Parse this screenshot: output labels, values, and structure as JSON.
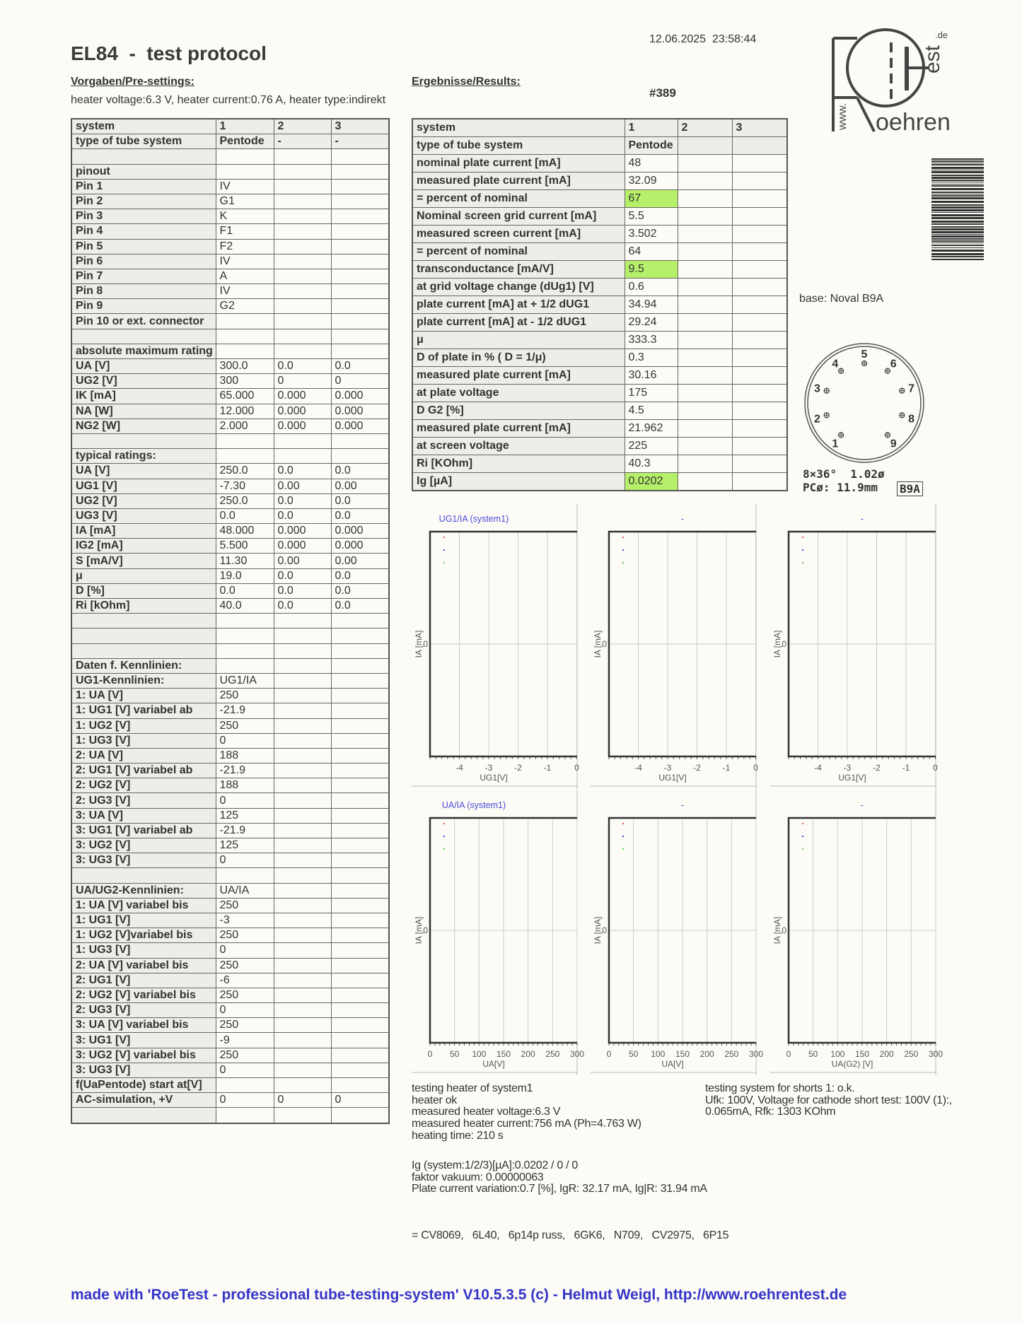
{
  "header": {
    "title": "EL84  -  test protocol",
    "datetime": "12.06.2025  23:58:44",
    "test_number": "#389",
    "presettings_heading": "Vorgaben/Pre-settings:",
    "results_heading": "Ergebnisse/Results:",
    "heater_line": "heater voltage:6.3 V, heater current:0.76 A, heater type:indirekt"
  },
  "logo": {
    "www": "www.",
    "roehren": "oehren",
    "est": "est",
    "de": ".de"
  },
  "left_table": {
    "rows": [
      [
        "system",
        "1",
        "2",
        "3"
      ],
      [
        "type of tube system",
        "Pentode",
        "-",
        "-"
      ],
      [
        "",
        "",
        "",
        ""
      ],
      [
        "pinout",
        "",
        "",
        ""
      ],
      [
        "Pin 1",
        "IV",
        "",
        ""
      ],
      [
        "Pin 2",
        "G1",
        "",
        ""
      ],
      [
        "Pin 3",
        "K",
        "",
        ""
      ],
      [
        "Pin 4",
        "F1",
        "",
        ""
      ],
      [
        "Pin 5",
        "F2",
        "",
        ""
      ],
      [
        "Pin 6",
        "IV",
        "",
        ""
      ],
      [
        "Pin 7",
        "A",
        "",
        ""
      ],
      [
        "Pin 8",
        "IV",
        "",
        ""
      ],
      [
        "Pin 9",
        "G2",
        "",
        ""
      ],
      [
        "Pin 10 or ext. connector",
        "",
        "",
        ""
      ],
      [
        "",
        "",
        "",
        ""
      ],
      [
        "absolute maximum rating",
        "",
        "",
        ""
      ],
      [
        "UA [V]",
        "300.0",
        "0.0",
        "0.0"
      ],
      [
        "UG2 [V]",
        "300",
        "0",
        "0"
      ],
      [
        "IK [mA]",
        "65.000",
        "0.000",
        "0.000"
      ],
      [
        "NA [W]",
        "12.000",
        "0.000",
        "0.000"
      ],
      [
        "NG2 [W]",
        "2.000",
        "0.000",
        "0.000"
      ],
      [
        "",
        "",
        "",
        ""
      ],
      [
        "typical ratings:",
        "",
        "",
        ""
      ],
      [
        "UA [V]",
        "250.0",
        "0.0",
        "0.0"
      ],
      [
        "UG1 [V]",
        "-7.30",
        "0.00",
        "0.00"
      ],
      [
        "UG2 [V]",
        "250.0",
        "0.0",
        "0.0"
      ],
      [
        "UG3 [V]",
        "0.0",
        "0.0",
        "0.0"
      ],
      [
        "IA [mA]",
        "48.000",
        "0.000",
        "0.000"
      ],
      [
        "IG2 [mA]",
        "5.500",
        "0.000",
        "0.000"
      ],
      [
        "S [mA/V]",
        "11.30",
        "0.00",
        "0.00"
      ],
      [
        "μ",
        "19.0",
        "0.0",
        "0.0"
      ],
      [
        "D [%]",
        "0.0",
        "0.0",
        "0.0"
      ],
      [
        "Ri [kOhm]",
        "40.0",
        "0.0",
        "0.0"
      ],
      [
        "",
        "",
        "",
        ""
      ],
      [
        "",
        "",
        "",
        ""
      ],
      [
        "",
        "",
        "",
        ""
      ],
      [
        "Daten f. Kennlinien:",
        "",
        "",
        ""
      ],
      [
        "UG1-Kennlinien:",
        "UG1/IA",
        "",
        ""
      ],
      [
        "1: UA [V]",
        "250",
        "",
        ""
      ],
      [
        "1: UG1 [V] variabel ab",
        "-21.9",
        "",
        ""
      ],
      [
        "1: UG2 [V]",
        "250",
        "",
        ""
      ],
      [
        "1: UG3 [V]",
        "0",
        "",
        ""
      ],
      [
        "2: UA [V]",
        "188",
        "",
        ""
      ],
      [
        "2: UG1 [V] variabel ab",
        "-21.9",
        "",
        ""
      ],
      [
        "2: UG2 [V]",
        "188",
        "",
        ""
      ],
      [
        "2: UG3 [V]",
        "0",
        "",
        ""
      ],
      [
        "3: UA [V]",
        "125",
        "",
        ""
      ],
      [
        "3: UG1 [V] variabel ab",
        "-21.9",
        "",
        ""
      ],
      [
        "3: UG2 [V]",
        "125",
        "",
        ""
      ],
      [
        "3: UG3 [V]",
        "0",
        "",
        ""
      ],
      [
        "",
        "",
        "",
        ""
      ],
      [
        "UA/UG2-Kennlinien:",
        "UA/IA",
        "",
        ""
      ],
      [
        "1: UA [V] variabel bis",
        "250",
        "",
        ""
      ],
      [
        "1: UG1 [V]",
        "-3",
        "",
        ""
      ],
      [
        "1: UG2 [V]variabel bis",
        "250",
        "",
        ""
      ],
      [
        "1: UG3 [V]",
        "0",
        "",
        ""
      ],
      [
        "2: UA [V] variabel bis",
        "250",
        "",
        ""
      ],
      [
        "2: UG1 [V]",
        "-6",
        "",
        ""
      ],
      [
        "2: UG2 [V] variabel bis",
        "250",
        "",
        ""
      ],
      [
        "2: UG3 [V]",
        "0",
        "",
        ""
      ],
      [
        "3: UA [V] variabel bis",
        "250",
        "",
        ""
      ],
      [
        "3: UG1 [V]",
        "-9",
        "",
        ""
      ],
      [
        "3: UG2 [V] variabel bis",
        "250",
        "",
        ""
      ],
      [
        "3: UG3 [V]",
        "0",
        "",
        ""
      ],
      [
        "f(UaPentode) start at[V]",
        "",
        "",
        ""
      ],
      [
        "AC-simulation, +V",
        "0",
        "0",
        "0"
      ],
      [
        "",
        "",
        "",
        ""
      ]
    ]
  },
  "right_table": {
    "highlight_color": "#b6f06a",
    "rows": [
      {
        "cells": [
          "system",
          "1",
          "2",
          "3"
        ]
      },
      {
        "cells": [
          "type of tube system",
          "Pentode",
          "",
          ""
        ]
      },
      {
        "cells": [
          "nominal plate current [mA]",
          "48",
          "",
          ""
        ]
      },
      {
        "cells": [
          "measured plate current [mA]",
          "32.09",
          "",
          ""
        ]
      },
      {
        "cells": [
          "= percent of nominal",
          "67",
          "",
          ""
        ],
        "highlight": true
      },
      {
        "cells": [
          "Nominal screen grid current [mA]",
          "5.5",
          "",
          ""
        ]
      },
      {
        "cells": [
          "measured screen current [mA]",
          "3.502",
          "",
          ""
        ]
      },
      {
        "cells": [
          "= percent of nominal",
          "64",
          "",
          ""
        ]
      },
      {
        "cells": [
          "transconductance [mA/V]",
          "9.5",
          "",
          ""
        ],
        "highlight": true
      },
      {
        "cells": [
          "at grid voltage change (dUg1) [V]",
          "0.6",
          "",
          ""
        ]
      },
      {
        "cells": [
          "plate current [mA] at + 1/2 dUG1",
          "34.94",
          "",
          ""
        ]
      },
      {
        "cells": [
          "plate current [mA] at - 1/2 dUG1",
          "29.24",
          "",
          ""
        ]
      },
      {
        "cells": [
          "μ",
          "333.3",
          "",
          ""
        ]
      },
      {
        "cells": [
          "D of plate in % ( D = 1/μ)",
          "0.3",
          "",
          ""
        ]
      },
      {
        "cells": [
          "measured plate current [mA]",
          "30.16",
          "",
          ""
        ]
      },
      {
        "cells": [
          "at plate voltage",
          "175",
          "",
          ""
        ]
      },
      {
        "cells": [
          "D G2 [%]",
          "4.5",
          "",
          ""
        ]
      },
      {
        "cells": [
          "measured plate current [mA]",
          "21.962",
          "",
          ""
        ]
      },
      {
        "cells": [
          "at screen voltage",
          "225",
          "",
          ""
        ]
      },
      {
        "cells": [
          "Ri [KOhm]",
          "40.3",
          "",
          ""
        ]
      },
      {
        "cells": [
          "Ig [µA]",
          "0.0202",
          "",
          ""
        ],
        "highlight": true
      }
    ]
  },
  "socket": {
    "base_label": "base: Noval B9A",
    "pins": [
      "1",
      "2",
      "3",
      "4",
      "5",
      "6",
      "7",
      "8",
      "9"
    ],
    "spec_line1": "8×36°  1.02ø",
    "spec_line2": "PCø: 11.9mm",
    "code": "B9A"
  },
  "chart_data": [
    {
      "type": "line",
      "title": "UG1/IA (system1)",
      "xlabel": "UG1[V]",
      "ylabel": "IA [mA]",
      "xlim": [
        -5,
        0
      ],
      "xticks": [
        "-4",
        "-3",
        "-2",
        "-1",
        "0"
      ],
      "xtick_values": [
        -4,
        -3,
        -2,
        -1,
        0
      ],
      "yticks": [
        "0"
      ],
      "grid": true,
      "series": [],
      "legend_colors": [
        "#e05050",
        "#4040e0",
        "#50d050"
      ]
    },
    {
      "type": "line",
      "title": "-",
      "xlabel": "UG1[V]",
      "ylabel": "IA [mA]",
      "xlim": [
        -5,
        0
      ],
      "xticks": [
        "-4",
        "-3",
        "-2",
        "-1",
        "0"
      ],
      "xtick_values": [
        -4,
        -3,
        -2,
        -1,
        0
      ],
      "yticks": [
        "0"
      ],
      "grid": true,
      "series": [],
      "legend_colors": [
        "#e05050",
        "#4040e0",
        "#50d050"
      ]
    },
    {
      "type": "line",
      "title": "-",
      "xlabel": "UG1[V]",
      "ylabel": "IA [mA]",
      "xlim": [
        -5,
        0
      ],
      "xticks": [
        "-4",
        "-3",
        "-2",
        "-1",
        "0"
      ],
      "xtick_values": [
        -4,
        -3,
        -2,
        -1,
        0
      ],
      "yticks": [
        "0"
      ],
      "grid": true,
      "series": [],
      "legend_colors": [
        "#e05050",
        "#4040e0",
        "#50d050"
      ]
    },
    {
      "type": "line",
      "title": "UA/IA (system1)",
      "xlabel": "UA[V]",
      "ylabel": "IA [mA]",
      "xlim": [
        0,
        300
      ],
      "xticks": [
        "0",
        "50",
        "100",
        "150",
        "200",
        "250",
        "300"
      ],
      "xtick_values": [
        0,
        50,
        100,
        150,
        200,
        250,
        300
      ],
      "yticks": [
        "0"
      ],
      "grid": true,
      "series": [],
      "legend_colors": [
        "#e05050",
        "#4040e0",
        "#50d050"
      ]
    },
    {
      "type": "line",
      "title": "-",
      "xlabel": "UA[V]",
      "ylabel": "IA [mA]",
      "xlim": [
        0,
        300
      ],
      "xticks": [
        "0",
        "50",
        "100",
        "150",
        "200",
        "250",
        "300"
      ],
      "xtick_values": [
        0,
        50,
        100,
        150,
        200,
        250,
        300
      ],
      "yticks": [
        "0"
      ],
      "grid": true,
      "series": [],
      "legend_colors": [
        "#e05050",
        "#4040e0",
        "#50d050"
      ]
    },
    {
      "type": "line",
      "title": "-",
      "xlabel": "UA(G2)  [V]",
      "ylabel": "IA [mA]",
      "xlim": [
        0,
        300
      ],
      "xticks": [
        "0",
        "50",
        "100",
        "150",
        "200",
        "250",
        "300"
      ],
      "xtick_values": [
        0,
        50,
        100,
        150,
        200,
        250,
        300
      ],
      "yticks": [
        "0"
      ],
      "grid": true,
      "series": [],
      "legend_colors": [
        "#e05050",
        "#4040e0",
        "#50d050"
      ]
    }
  ],
  "heater_test": {
    "lines": [
      "testing heater of system1",
      "heater ok",
      "measured heater voltage:6.3 V",
      "measured heater current:756 mA (Ph=4.763 W)",
      "heating time: 210 s"
    ]
  },
  "short_test": {
    "lines": [
      "testing system for shorts 1: o.k.",
      "Ufk: 100V, Voltage for cathode short test: 100V (1):,",
      "0.065mA, Rfk: 1303 KOhm"
    ]
  },
  "grid_test": {
    "lines": [
      "Ig (system:1/2/3)[µA]:0.0202 / 0 / 0",
      "faktor vakuum: 0.00000063",
      "Plate current variation:0.7 [%], IgR: 32.17 mA, Ig|R: 31.94 mA"
    ]
  },
  "equivalents": "= CV8069,   6L40,   6p14p russ,   6GK6,   N709,   CV2975,   6P15",
  "footer": "made with 'RoeTest - professional tube-testing-system' V10.5.3.5 (c) - Helmut Weigl, http://www.roehrentest.de",
  "colors": {
    "footer": "#3434c8",
    "chart_title": "#4a4ad8",
    "background": "#fdfbf6"
  }
}
